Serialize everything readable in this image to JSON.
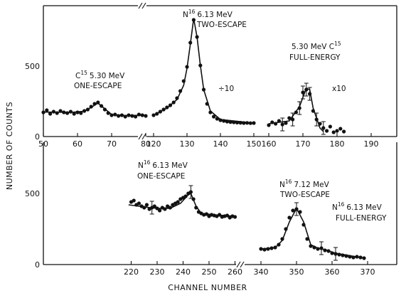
{
  "chart_data": [
    {
      "type": "scatter",
      "panel": "upper",
      "xlabel": "",
      "ylabel": "NUMBER OF COUNTS",
      "y_ticks": [
        "0",
        "500"
      ],
      "ylim": [
        0,
        900
      ],
      "x_ticks": [
        "50",
        "60",
        "70",
        "80",
        "120",
        "130",
        "140",
        "150",
        "160",
        "170",
        "180",
        "190"
      ],
      "x_axis_breaks": [
        [
          82,
          118
        ],
        [
          152,
          158
        ]
      ],
      "annotations": {
        "c15_one_escape": {
          "mass": "15",
          "text": "5.30 MeV",
          "sub": "ONE-ESCAPE"
        },
        "n16_two_escape": {
          "mass": "16",
          "text": "6.13 MeV",
          "sub": "TWO-ESCAPE"
        },
        "c15_full_energy": {
          "text": "5.30 MeV C",
          "mass": "15",
          "sub": "FULL-ENERGY"
        },
        "scale_div": "÷10",
        "scale_mul": "x10"
      },
      "series": [
        {
          "values_of": "C15 5.30 MeV one-escape",
          "x": [
            50,
            51,
            52,
            53,
            54,
            55,
            56,
            57,
            58,
            59,
            60,
            61,
            62,
            63,
            64,
            65,
            66,
            67,
            68,
            69,
            70,
            71,
            72,
            73,
            74,
            75,
            76,
            77,
            78,
            79,
            80
          ],
          "y": [
            170,
            185,
            160,
            175,
            165,
            180,
            170,
            165,
            175,
            160,
            170,
            165,
            180,
            190,
            210,
            230,
            240,
            215,
            190,
            165,
            150,
            155,
            145,
            150,
            140,
            150,
            145,
            140,
            155,
            150,
            145
          ],
          "fit": [
            [
              50,
              172
            ],
            [
              58,
              170
            ],
            [
              62,
              178
            ],
            [
              64,
              205
            ],
            [
              66,
              235
            ],
            [
              68,
              195
            ],
            [
              70,
              155
            ],
            [
              74,
              148
            ],
            [
              80,
              150
            ]
          ]
        },
        {
          "values_of": "N16 6.13 MeV two-escape (÷10)",
          "x": [
            120,
            121,
            122,
            123,
            124,
            125,
            126,
            127,
            128,
            129,
            130,
            131,
            132,
            133,
            134,
            135,
            136,
            137,
            138,
            139,
            140,
            141,
            142,
            143,
            144,
            145,
            146,
            147,
            148,
            149,
            150
          ],
          "y": [
            150,
            160,
            175,
            190,
            205,
            220,
            240,
            270,
            320,
            390,
            490,
            660,
            820,
            700,
            500,
            330,
            230,
            170,
            140,
            125,
            115,
            110,
            105,
            102,
            100,
            98,
            97,
            95,
            96,
            94,
            95
          ],
          "fit": [
            [
              120,
              150
            ],
            [
              124,
              200
            ],
            [
              127,
              260
            ],
            [
              129,
              360
            ],
            [
              130,
              480
            ],
            [
              131,
              650
            ],
            [
              132,
              830
            ],
            [
              133,
              700
            ],
            [
              134,
              500
            ],
            [
              135,
              330
            ],
            [
              137,
              180
            ],
            [
              140,
              120
            ],
            [
              150,
              95
            ]
          ]
        },
        {
          "values_of": "C15 5.30 MeV full-energy (x10)",
          "x": [
            160,
            161,
            162,
            163,
            164,
            165,
            166,
            167,
            168,
            169,
            170,
            171,
            172,
            173,
            174,
            175,
            176,
            177,
            178,
            179,
            180,
            181,
            182
          ],
          "y": [
            80,
            100,
            90,
            110,
            85,
            95,
            130,
            120,
            170,
            200,
            310,
            330,
            300,
            180,
            120,
            90,
            60,
            40,
            70,
            30,
            40,
            55,
            35
          ],
          "error_x": [
            164,
            167,
            169,
            170,
            171,
            172,
            174,
            176
          ],
          "fit": [
            [
              160,
              90
            ],
            [
              166,
              110
            ],
            [
              169,
              210
            ],
            [
              171,
              340
            ],
            [
              172,
              330
            ],
            [
              173,
              200
            ],
            [
              175,
              60
            ],
            [
              176,
              35
            ]
          ]
        }
      ]
    },
    {
      "type": "scatter",
      "panel": "lower",
      "xlabel": "CHANNEL NUMBER",
      "ylabel": "NUMBER OF COUNTS",
      "y_ticks": [
        "0",
        "500"
      ],
      "ylim": [
        0,
        700
      ],
      "x_ticks": [
        "220",
        "230",
        "240",
        "250",
        "260",
        "340",
        "350",
        "360",
        "370"
      ],
      "x_axis_breaks": [
        [
          262,
          338
        ]
      ],
      "annotations": {
        "n16_one_escape": {
          "mass": "16",
          "text": "6.13 MeV",
          "sub": "ONE-ESCAPE"
        },
        "n16_712_two_escape": {
          "mass": "16",
          "text": "7.12 MeV",
          "sub": "TWO-ESCAPE"
        },
        "n16_613_full_energy": {
          "mass": "16",
          "text": "6.13 MeV",
          "sub": "FULL-ENERGY"
        }
      },
      "series": [
        {
          "values_of": "N16 6.13 MeV one-escape",
          "x": [
            220,
            221,
            222,
            223,
            224,
            225,
            226,
            227,
            228,
            229,
            230,
            231,
            232,
            233,
            234,
            235,
            236,
            237,
            238,
            239,
            240,
            241,
            242,
            243,
            244,
            245,
            246,
            247,
            248,
            249,
            250,
            251,
            252,
            253,
            254,
            255,
            256,
            257,
            258,
            259,
            260
          ],
          "y": [
            440,
            450,
            420,
            430,
            410,
            400,
            420,
            390,
            400,
            410,
            395,
            380,
            400,
            390,
            410,
            400,
            420,
            430,
            440,
            460,
            470,
            480,
            500,
            510,
            460,
            400,
            370,
            360,
            350,
            355,
            340,
            350,
            345,
            340,
            350,
            335,
            340,
            345,
            330,
            340,
            335
          ],
          "error_x": [
            228,
            243
          ],
          "fit": [
            [
              219,
              420
            ],
            [
              225,
              405
            ],
            [
              230,
              395
            ],
            [
              235,
              395
            ],
            [
              239,
              430
            ],
            [
              242,
              490
            ],
            [
              243,
              500
            ],
            [
              245,
              410
            ],
            [
              247,
              360
            ],
            [
              252,
              350
            ],
            [
              260,
              340
            ]
          ]
        },
        {
          "values_of": "N16 7.12 MeV two-escape / 6.13 MeV full-energy",
          "x": [
            340,
            341,
            342,
            343,
            344,
            345,
            346,
            347,
            348,
            349,
            350,
            351,
            352,
            353,
            354,
            355,
            356,
            357,
            358,
            359,
            360,
            361,
            362,
            363,
            364,
            365,
            366,
            367,
            368,
            369
          ],
          "y": [
            110,
            105,
            110,
            115,
            120,
            140,
            180,
            250,
            330,
            380,
            390,
            370,
            280,
            180,
            130,
            120,
            110,
            115,
            100,
            95,
            80,
            75,
            70,
            65,
            60,
            55,
            50,
            55,
            50,
            45
          ],
          "error_x": [
            350,
            357,
            361
          ],
          "fit": [
            [
              340,
              110
            ],
            [
              344,
              118
            ],
            [
              346,
              170
            ],
            [
              348,
              300
            ],
            [
              350,
              395
            ],
            [
              352,
              300
            ],
            [
              354,
              140
            ],
            [
              356,
              115
            ],
            [
              358,
              105
            ],
            [
              361,
              80
            ],
            [
              369,
              45
            ]
          ]
        }
      ]
    }
  ]
}
